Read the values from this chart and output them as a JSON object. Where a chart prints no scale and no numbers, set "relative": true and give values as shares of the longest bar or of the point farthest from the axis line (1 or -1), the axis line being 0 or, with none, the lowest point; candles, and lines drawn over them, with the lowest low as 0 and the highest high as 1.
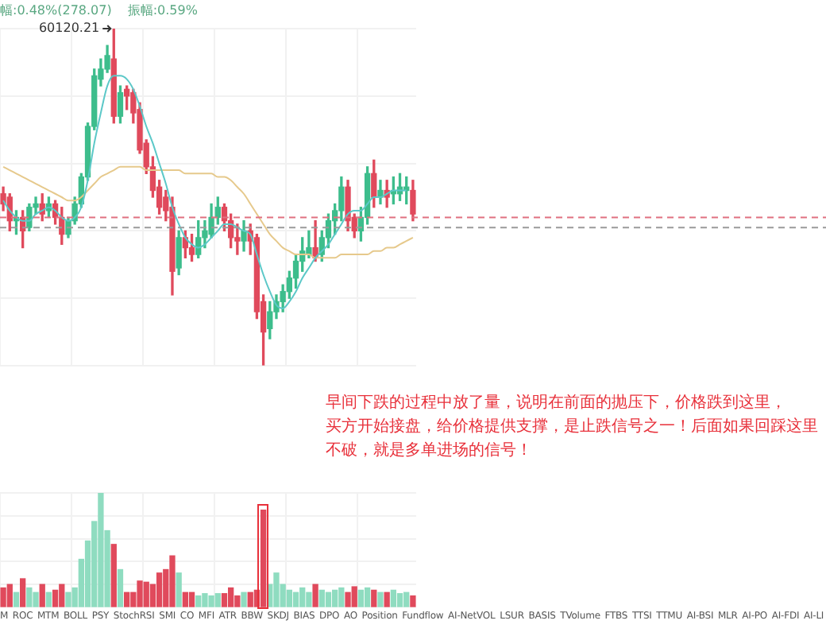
{
  "chart_data": [
    {
      "type": "candlestick",
      "relative": true,
      "grid": true,
      "marker": "none",
      "categories": [
        null,
        null,
        null,
        null,
        null,
        null,
        null,
        null,
        null,
        null,
        null,
        null,
        null,
        null,
        null,
        null,
        null,
        null,
        null,
        null,
        null,
        null,
        null,
        null,
        null,
        null,
        null,
        null,
        null,
        null,
        null,
        null,
        null,
        null,
        null,
        null,
        null,
        null,
        null,
        null,
        null,
        null,
        null,
        null,
        null,
        null,
        null,
        null,
        null,
        null,
        null,
        null,
        null,
        null,
        null,
        null,
        null,
        null,
        null,
        null,
        null,
        null,
        null,
        null
      ],
      "ohlc": [
        [
          0.51,
          0.53,
          0.46,
          0.48
        ],
        [
          0.5,
          0.51,
          0.4,
          0.43
        ],
        [
          0.43,
          0.46,
          0.39,
          0.44
        ],
        [
          0.44,
          0.46,
          0.35,
          0.4
        ],
        [
          0.41,
          0.48,
          0.4,
          0.47
        ],
        [
          0.47,
          0.5,
          0.45,
          0.48
        ],
        [
          0.48,
          0.51,
          0.43,
          0.45
        ],
        [
          0.46,
          0.5,
          0.44,
          0.48
        ],
        [
          0.48,
          0.49,
          0.42,
          0.44
        ],
        [
          0.44,
          0.47,
          0.36,
          0.39
        ],
        [
          0.39,
          0.44,
          0.38,
          0.43
        ],
        [
          0.43,
          0.5,
          0.42,
          0.48
        ],
        [
          0.48,
          0.57,
          0.47,
          0.56
        ],
        [
          0.56,
          0.72,
          0.55,
          0.71
        ],
        [
          0.71,
          0.88,
          0.7,
          0.86
        ],
        [
          0.85,
          0.91,
          0.83,
          0.88
        ],
        [
          0.88,
          0.95,
          0.87,
          0.92
        ],
        [
          0.91,
          1.0,
          0.72,
          0.74
        ],
        [
          0.74,
          0.83,
          0.72,
          0.81
        ],
        [
          0.82,
          0.83,
          0.76,
          0.8
        ],
        [
          0.81,
          0.82,
          0.72,
          0.75
        ],
        [
          0.76,
          0.78,
          0.63,
          0.64
        ],
        [
          0.66,
          0.67,
          0.57,
          0.59
        ],
        [
          0.59,
          0.62,
          0.5,
          0.52
        ],
        [
          0.53,
          0.55,
          0.45,
          0.47
        ],
        [
          0.5,
          0.52,
          0.43,
          0.46
        ],
        [
          0.47,
          0.5,
          0.21,
          0.28
        ],
        [
          0.29,
          0.4,
          0.27,
          0.38
        ],
        [
          0.38,
          0.4,
          0.32,
          0.35
        ],
        [
          0.35,
          0.39,
          0.31,
          0.33
        ],
        [
          0.33,
          0.43,
          0.32,
          0.38
        ],
        [
          0.38,
          0.43,
          0.35,
          0.4
        ],
        [
          0.39,
          0.48,
          0.38,
          0.44
        ],
        [
          0.44,
          0.5,
          0.42,
          0.47
        ],
        [
          0.47,
          0.48,
          0.4,
          0.43
        ],
        [
          0.43,
          0.45,
          0.35,
          0.38
        ],
        [
          0.38,
          0.42,
          0.33,
          0.37
        ],
        [
          0.37,
          0.43,
          0.34,
          0.4
        ],
        [
          0.4,
          0.42,
          0.33,
          0.37
        ],
        [
          0.38,
          0.39,
          0.14,
          0.16
        ],
        [
          0.19,
          0.21,
          0,
          0.1
        ],
        [
          0.11,
          0.19,
          0.08,
          0.16
        ],
        [
          0.16,
          0.21,
          0.14,
          0.19
        ],
        [
          0.19,
          0.24,
          0.16,
          0.22
        ],
        [
          0.22,
          0.28,
          0.2,
          0.26
        ],
        [
          0.26,
          0.33,
          0.23,
          0.31
        ],
        [
          0.31,
          0.38,
          0.28,
          0.34
        ],
        [
          0.33,
          0.4,
          0.32,
          0.35
        ],
        [
          0.35,
          0.43,
          0.31,
          0.32
        ],
        [
          0.33,
          0.4,
          0.31,
          0.38
        ],
        [
          0.38,
          0.45,
          0.35,
          0.43
        ],
        [
          0.43,
          0.48,
          0.39,
          0.46
        ],
        [
          0.46,
          0.56,
          0.43,
          0.53
        ],
        [
          0.53,
          0.55,
          0.4,
          0.43
        ],
        [
          0.44,
          0.45,
          0.38,
          0.4
        ],
        [
          0.4,
          0.47,
          0.37,
          0.44
        ],
        [
          0.44,
          0.59,
          0.42,
          0.57
        ],
        [
          0.57,
          0.61,
          0.47,
          0.5
        ],
        [
          0.5,
          0.55,
          0.48,
          0.52
        ],
        [
          0.52,
          0.55,
          0.47,
          0.5
        ],
        [
          0.51,
          0.56,
          0.48,
          0.52
        ],
        [
          0.51,
          0.57,
          0.49,
          0.53
        ],
        [
          0.52,
          0.56,
          0.48,
          0.53
        ],
        [
          0.52,
          0.55,
          0.43,
          0.45
        ]
      ],
      "colors": [
        "#e04a5c",
        "#e04a5c",
        "#3dbd8c",
        "#e04a5c",
        "#3dbd8c",
        "#3dbd8c",
        "#e04a5c",
        "#3dbd8c",
        "#e04a5c",
        "#e04a5c",
        "#3dbd8c",
        "#3dbd8c",
        "#3dbd8c",
        "#3dbd8c",
        "#3dbd8c",
        "#3dbd8c",
        "#3dbd8c",
        "#e04a5c",
        "#3dbd8c",
        "#e04a5c",
        "#e04a5c",
        "#e04a5c",
        "#e04a5c",
        "#e04a5c",
        "#e04a5c",
        "#e04a5c",
        "#e04a5c",
        "#3dbd8c",
        "#e04a5c",
        "#e04a5c",
        "#3dbd8c",
        "#3dbd8c",
        "#3dbd8c",
        "#3dbd8c",
        "#e04a5c",
        "#e04a5c",
        "#e04a5c",
        "#3dbd8c",
        "#e04a5c",
        "#e04a5c",
        "#e04a5c",
        "#3dbd8c",
        "#3dbd8c",
        "#3dbd8c",
        "#3dbd8c",
        "#3dbd8c",
        "#3dbd8c",
        "#3dbd8c",
        "#e04a5c",
        "#3dbd8c",
        "#3dbd8c",
        "#3dbd8c",
        "#3dbd8c",
        "#e04a5c",
        "#e04a5c",
        "#3dbd8c",
        "#3dbd8c",
        "#e04a5c",
        "#3dbd8c",
        "#e04a5c",
        "#3dbd8c",
        "#3dbd8c",
        "#3dbd8c",
        "#e04a5c"
      ],
      "series": [
        {
          "type": "line",
          "color": "#5cc8c8",
          "values": [
            0.49,
            0.46,
            0.44,
            0.43,
            0.43,
            0.45,
            0.46,
            0.47,
            0.46,
            0.44,
            0.43,
            0.44,
            0.47,
            0.55,
            0.66,
            0.75,
            0.83,
            0.86,
            0.86,
            0.85,
            0.82,
            0.77,
            0.71,
            0.66,
            0.6,
            0.54,
            0.47,
            0.42,
            0.38,
            0.36,
            0.35,
            0.36,
            0.38,
            0.4,
            0.42,
            0.42,
            0.41,
            0.4,
            0.39,
            0.33,
            0.27,
            0.22,
            0.18,
            0.17,
            0.19,
            0.22,
            0.26,
            0.29,
            0.32,
            0.34,
            0.36,
            0.39,
            0.42,
            0.45,
            0.46,
            0.46,
            0.48,
            0.5,
            0.5,
            0.51,
            0.52,
            0.52,
            0.52,
            null
          ]
        },
        {
          "type": "line",
          "color": "#e6c98c",
          "values": [
            0.59,
            0.58,
            0.57,
            0.56,
            0.55,
            0.54,
            0.53,
            0.52,
            0.51,
            0.5,
            0.49,
            0.49,
            0.5,
            0.52,
            0.54,
            0.56,
            0.57,
            0.58,
            0.59,
            0.59,
            0.59,
            0.59,
            0.58,
            0.58,
            0.58,
            0.58,
            0.58,
            0.58,
            0.57,
            0.57,
            0.57,
            0.57,
            0.57,
            0.56,
            0.56,
            0.55,
            0.53,
            0.51,
            0.48,
            0.45,
            0.42,
            0.39,
            0.37,
            0.35,
            0.34,
            0.33,
            0.33,
            0.33,
            0.32,
            0.32,
            0.32,
            0.32,
            0.33,
            0.33,
            0.33,
            0.33,
            0.33,
            0.34,
            0.34,
            0.35,
            0.35,
            0.36,
            0.37,
            0.38
          ]
        }
      ],
      "ref_lines": [
        {
          "axis": "y",
          "value": 0.44,
          "color": "#e07080",
          "line_style": "dashed"
        },
        {
          "axis": "y",
          "value": 0.41,
          "color": "#9a9a9a",
          "line_style": "dashed"
        }
      ],
      "annotations": [
        "60120.21",
        "幅:0.48%(278.07)",
        "振幅:0.59%",
        "早间下跌的过程中放了量，说明在前面的抛压下，价格跌到这里，",
        "买方开始接盘，给价格提供支撑，是止跌信号之一！后面如果回踩这里",
        "不破，就是多单进场的信号！"
      ]
    },
    {
      "type": "bar",
      "relative": true,
      "grid": true,
      "categories": [
        null,
        null,
        null,
        null,
        null,
        null,
        null,
        null,
        null,
        null,
        null,
        null,
        null,
        null,
        null,
        null,
        null,
        null,
        null,
        null,
        null,
        null,
        null,
        null,
        null,
        null,
        null,
        null,
        null,
        null,
        null,
        null,
        null,
        null,
        null,
        null,
        null,
        null,
        null,
        null,
        null,
        null,
        null,
        null,
        null,
        null,
        null,
        null,
        null,
        null,
        null,
        null,
        null,
        null,
        null,
        null,
        null,
        null,
        null,
        null,
        null,
        null,
        null,
        null
      ],
      "values": [
        0.17,
        0.2,
        0.13,
        0.25,
        0.17,
        0.13,
        0.2,
        0.13,
        0.15,
        0.2,
        0.13,
        0.17,
        0.42,
        0.58,
        0.75,
        1,
        0.67,
        0.55,
        0.33,
        0.13,
        0.13,
        0.23,
        0.22,
        0.2,
        0.3,
        0.33,
        0.45,
        0.3,
        0.13,
        0.13,
        0.1,
        0.12,
        0.1,
        0.12,
        0.12,
        0.17,
        0.1,
        0.13,
        0.13,
        0.15,
        0.85,
        0.2,
        0.3,
        0.2,
        0.15,
        0.13,
        0.17,
        0.13,
        0.2,
        0.15,
        0.13,
        0.15,
        0.17,
        0.13,
        0.18,
        0.15,
        0.17,
        0.15,
        0.13,
        0.13,
        0.15,
        0.12,
        0.13,
        0.1
      ],
      "colors": [
        "#e04a5c",
        "#e04a5c",
        "#8fdcc0",
        "#e04a5c",
        "#8fdcc0",
        "#8fdcc0",
        "#e04a5c",
        "#8fdcc0",
        "#e04a5c",
        "#e04a5c",
        "#8fdcc0",
        "#8fdcc0",
        "#8fdcc0",
        "#8fdcc0",
        "#8fdcc0",
        "#8fdcc0",
        "#8fdcc0",
        "#e04a5c",
        "#8fdcc0",
        "#e04a5c",
        "#e04a5c",
        "#e04a5c",
        "#e04a5c",
        "#e04a5c",
        "#e04a5c",
        "#e04a5c",
        "#e04a5c",
        "#8fdcc0",
        "#e04a5c",
        "#e04a5c",
        "#8fdcc0",
        "#8fdcc0",
        "#8fdcc0",
        "#8fdcc0",
        "#e04a5c",
        "#e04a5c",
        "#e04a5c",
        "#8fdcc0",
        "#e04a5c",
        "#e04a5c",
        "#e04a5c",
        "#8fdcc0",
        "#8fdcc0",
        "#8fdcc0",
        "#8fdcc0",
        "#8fdcc0",
        "#8fdcc0",
        "#8fdcc0",
        "#e04a5c",
        "#8fdcc0",
        "#8fdcc0",
        "#8fdcc0",
        "#8fdcc0",
        "#e04a5c",
        "#e04a5c",
        "#8fdcc0",
        "#8fdcc0",
        "#e04a5c",
        "#8fdcc0",
        "#e04a5c",
        "#8fdcc0",
        "#8fdcc0",
        "#8fdcc0",
        "#e04a5c"
      ],
      "annotations": [
        "M ROC MTM BOLL PSY StochRSI SMI CO MFI ATR BBW SKDJ BIAS DPO AO Position Fundflow AI-NetVOL LSUR BASIS TVolume FTBS TTSI TTMU AI-BSI MLR AI-PO AI-FDI AI-LI"
      ]
    }
  ]
}
